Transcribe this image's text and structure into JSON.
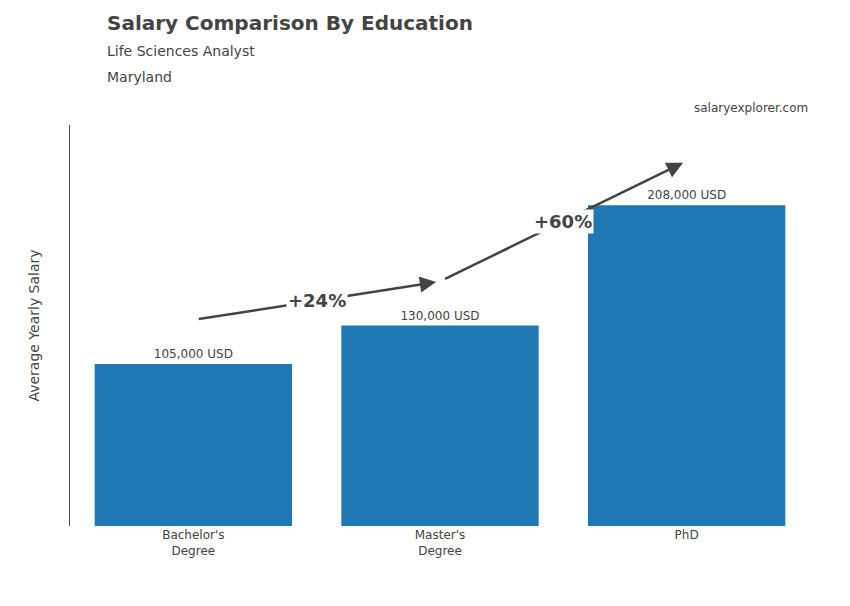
{
  "chart_data": {
    "type": "bar",
    "title": "Salary Comparison By Education",
    "subtitle": [
      "Life Sciences Analyst",
      "Maryland"
    ],
    "source": "salaryexplorer.com",
    "ylabel": "Average Yearly Salary",
    "categories": [
      "Bachelor's\nDegree",
      "Master's\nDegree",
      "PhD"
    ],
    "values": [
      105000,
      130000,
      208000
    ],
    "value_labels": [
      "105,000 USD",
      "130,000 USD",
      "208,000 USD"
    ],
    "data_labels": true,
    "annotations": [
      "+24%",
      "+60%"
    ],
    "ylim": [
      0,
      260000
    ],
    "tick_labels": "x",
    "grid": false
  }
}
